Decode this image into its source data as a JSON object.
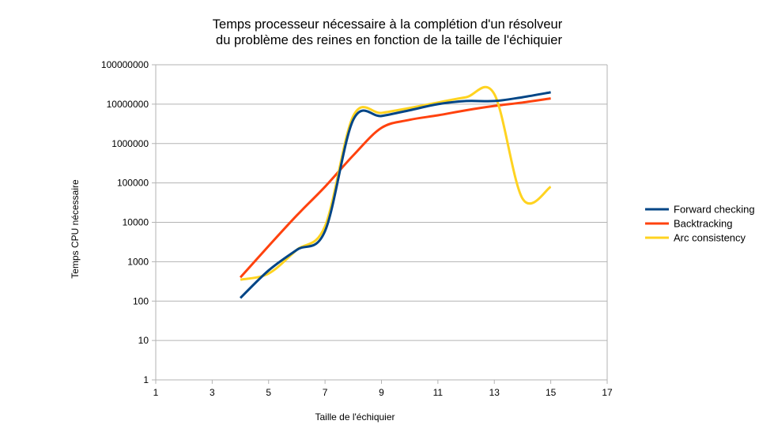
{
  "chart_data": {
    "type": "line",
    "title": [
      "Temps processeur nécessaire à la complétion d'un résolveur",
      "du problème des reines en fonction de la taille de l'échiquier"
    ],
    "xlabel": "Taille de l'échiquier",
    "ylabel": "Temps CPU nécessaire",
    "xlim": [
      1,
      17
    ],
    "xticks": [
      1,
      3,
      5,
      7,
      9,
      11,
      13,
      15,
      17
    ],
    "ylim": [
      1,
      100000000
    ],
    "yscale": "log",
    "yticks": [
      1,
      10,
      100,
      1000,
      10000,
      100000,
      1000000,
      10000000,
      100000000
    ],
    "ytick_labels": [
      "1",
      "10",
      "100",
      "1000",
      "10000",
      "100000",
      "1000000",
      "10000000",
      "100000000"
    ],
    "grid": "horizontal",
    "legend_position": "right",
    "x": [
      4,
      5,
      6,
      7,
      8,
      9,
      10,
      11,
      12,
      13,
      14,
      15
    ],
    "series": [
      {
        "name": "Forward checking",
        "color": "#004586",
        "values": [
          120,
          600,
          2000,
          6000,
          4000000,
          5000000,
          7000000,
          10000000,
          12000000,
          12000000,
          15000000,
          20000000
        ]
      },
      {
        "name": "Backtracking",
        "color": "#ff420e",
        "values": [
          400,
          2500,
          15000,
          80000,
          500000,
          2500000,
          4000000,
          5200000,
          7000000,
          9000000,
          11000000,
          14000000
        ]
      },
      {
        "name": "Arc consistency",
        "color": "#ffd320",
        "values": [
          350,
          500,
          2000,
          8000,
          5000000,
          6000000,
          8000000,
          11000000,
          15000000,
          18000000,
          40000,
          80000
        ]
      }
    ]
  }
}
